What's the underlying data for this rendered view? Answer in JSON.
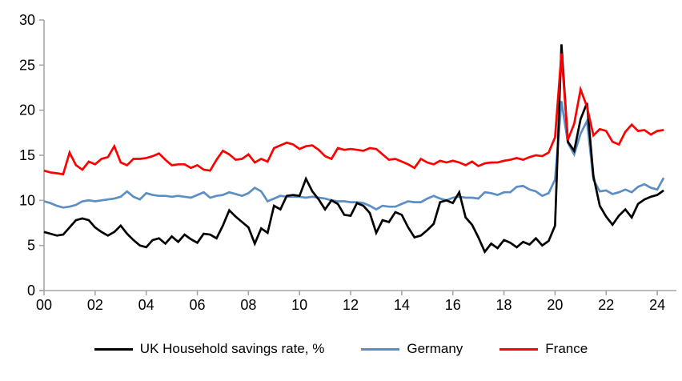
{
  "chart_data": {
    "type": "line",
    "title": "",
    "x_axis": {
      "tick_labels": [
        "00",
        "02",
        "04",
        "06",
        "08",
        "10",
        "12",
        "14",
        "16",
        "18",
        "20",
        "22",
        "24"
      ],
      "years_per_tick": 2,
      "start_year": 2000,
      "points_per_year": 4
    },
    "y_axis": {
      "ticks": [
        0,
        5,
        10,
        15,
        20,
        25,
        30
      ],
      "ylim": [
        0,
        30
      ]
    },
    "grid": "off",
    "legend_position": "bottom",
    "axis_color": "#a6a6a6",
    "label_color": "#000000",
    "series": [
      {
        "name": "UK Household savings rate, %",
        "color": "#000000",
        "values": [
          6.5,
          6.3,
          6.1,
          6.2,
          7.0,
          7.8,
          8.0,
          7.8,
          7.0,
          6.5,
          6.1,
          6.5,
          7.2,
          6.3,
          5.6,
          5.0,
          4.8,
          5.6,
          5.8,
          5.2,
          6.0,
          5.4,
          6.2,
          5.7,
          5.3,
          6.3,
          6.2,
          5.8,
          7.2,
          8.9,
          8.2,
          7.6,
          7.0,
          5.2,
          6.9,
          6.4,
          9.4,
          9.0,
          10.5,
          10.6,
          10.5,
          12.4,
          11.0,
          10.1,
          9.0,
          10.0,
          9.6,
          8.4,
          8.3,
          9.7,
          9.4,
          8.6,
          6.4,
          7.8,
          7.6,
          8.7,
          8.4,
          7.0,
          5.9,
          6.1,
          6.7,
          7.4,
          9.8,
          10.0,
          9.7,
          10.9,
          8.1,
          7.3,
          5.9,
          4.3,
          5.2,
          4.7,
          5.6,
          5.3,
          4.8,
          5.4,
          5.1,
          5.8,
          5.0,
          5.5,
          7.2,
          27.3,
          16.5,
          15.5,
          19.0,
          20.8,
          12.7,
          9.4,
          8.2,
          7.3,
          8.3,
          9.0,
          8.1,
          9.6,
          10.1,
          10.4,
          10.6,
          11.1
        ]
      },
      {
        "name": "Germany",
        "color": "#5b8ec4",
        "values": [
          9.9,
          9.7,
          9.4,
          9.2,
          9.3,
          9.5,
          9.9,
          10.0,
          9.9,
          10.0,
          10.1,
          10.2,
          10.4,
          11.0,
          10.4,
          10.1,
          10.8,
          10.6,
          10.5,
          10.5,
          10.4,
          10.5,
          10.4,
          10.3,
          10.6,
          10.9,
          10.3,
          10.5,
          10.6,
          10.9,
          10.7,
          10.5,
          10.8,
          11.4,
          11.0,
          9.9,
          10.2,
          10.5,
          10.4,
          10.4,
          10.4,
          10.3,
          10.4,
          10.3,
          10.2,
          10.0,
          9.9,
          9.9,
          9.8,
          9.8,
          9.7,
          9.4,
          9.0,
          9.4,
          9.3,
          9.3,
          9.6,
          9.9,
          9.8,
          9.8,
          10.2,
          10.5,
          10.2,
          10.0,
          10.3,
          10.4,
          10.3,
          10.3,
          10.2,
          10.9,
          10.8,
          10.6,
          10.9,
          10.9,
          11.5,
          11.6,
          11.2,
          11.0,
          10.5,
          10.8,
          12.3,
          21.0,
          16.4,
          15.1,
          17.4,
          18.8,
          12.3,
          11.0,
          11.1,
          10.7,
          10.9,
          11.2,
          10.9,
          11.5,
          11.8,
          11.4,
          11.2,
          12.5
        ]
      },
      {
        "name": "France",
        "color": "#fe0000",
        "values": [
          13.3,
          13.1,
          13.0,
          12.9,
          15.3,
          13.9,
          13.4,
          14.3,
          14.0,
          14.6,
          14.8,
          16.0,
          14.2,
          13.9,
          14.6,
          14.6,
          14.7,
          14.9,
          15.2,
          14.5,
          13.9,
          14.0,
          14.0,
          13.6,
          13.9,
          13.4,
          13.3,
          14.5,
          15.5,
          15.1,
          14.5,
          14.6,
          15.1,
          14.2,
          14.6,
          14.3,
          15.8,
          16.1,
          16.4,
          16.2,
          15.7,
          16.0,
          16.1,
          15.6,
          14.9,
          14.6,
          15.8,
          15.6,
          15.7,
          15.6,
          15.5,
          15.8,
          15.7,
          15.1,
          14.5,
          14.6,
          14.3,
          14.0,
          13.6,
          14.6,
          14.2,
          14.0,
          14.4,
          14.2,
          14.4,
          14.2,
          13.9,
          14.3,
          13.8,
          14.1,
          14.2,
          14.2,
          14.4,
          14.5,
          14.7,
          14.5,
          14.8,
          15.0,
          14.9,
          15.3,
          17.0,
          26.3,
          16.7,
          18.5,
          22.3,
          20.4,
          17.2,
          17.9,
          17.7,
          16.5,
          16.2,
          17.6,
          18.4,
          17.7,
          17.8,
          17.3,
          17.7,
          17.8
        ]
      }
    ],
    "draw_order": [
      1,
      0,
      2
    ]
  }
}
